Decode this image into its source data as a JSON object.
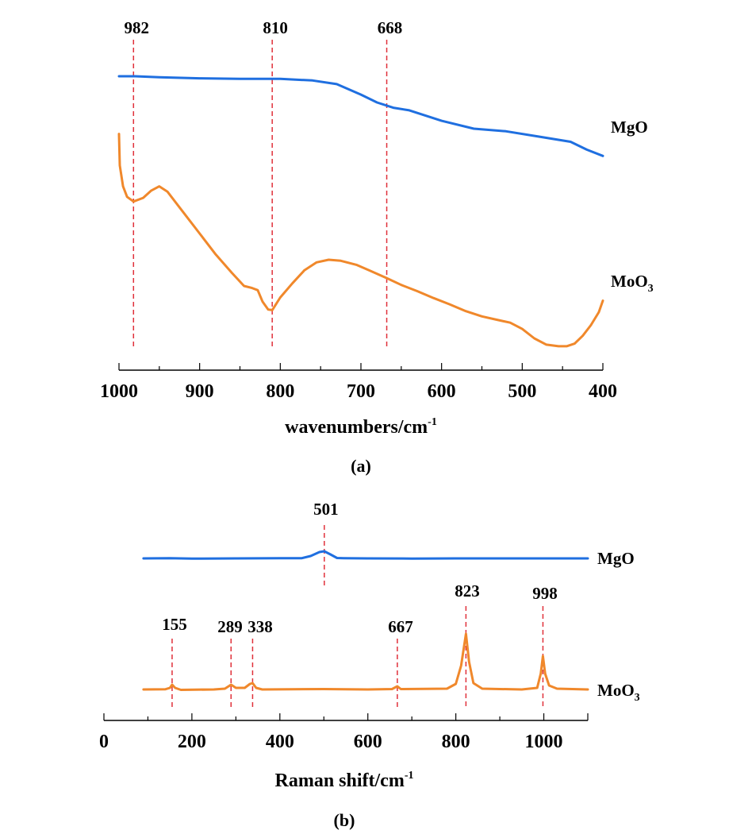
{
  "chart_data": [
    {
      "type": "line",
      "panel_label": "(a)",
      "title": "",
      "xlabel": "wavenumbers/cm",
      "xlabel_sup": "-1",
      "ylabel": "",
      "xlim": [
        1000,
        400
      ],
      "x_reversed": true,
      "x_ticks": [
        1000,
        900,
        800,
        700,
        600,
        500,
        400
      ],
      "x_tick_labels": [
        "1000",
        "900",
        "800",
        "700",
        "600",
        "500",
        "400"
      ],
      "x_minor_step": 50,
      "grid": false,
      "y_axis_shown": false,
      "markers": [
        {
          "x": 982,
          "label": "982"
        },
        {
          "x": 810,
          "label": "810"
        },
        {
          "x": 668,
          "label": "668"
        }
      ],
      "series": [
        {
          "name": "MgO",
          "label": "MgO",
          "color": "#1f6fe0",
          "points": [
            [
              1000,
              0.97
            ],
            [
              980,
              0.97
            ],
            [
              950,
              0.968
            ],
            [
              900,
              0.966
            ],
            [
              850,
              0.965
            ],
            [
              800,
              0.965
            ],
            [
              760,
              0.962
            ],
            [
              730,
              0.955
            ],
            [
              700,
              0.935
            ],
            [
              680,
              0.92
            ],
            [
              660,
              0.91
            ],
            [
              640,
              0.905
            ],
            [
              600,
              0.885
            ],
            [
              560,
              0.87
            ],
            [
              520,
              0.865
            ],
            [
              480,
              0.855
            ],
            [
              440,
              0.845
            ],
            [
              420,
              0.83
            ],
            [
              400,
              0.818
            ]
          ]
        },
        {
          "name": "MoO3",
          "label": "MoO",
          "label_sub": "3",
          "color": "#f0882b",
          "points": [
            [
              1000,
              0.86
            ],
            [
              999,
              0.8
            ],
            [
              995,
              0.76
            ],
            [
              990,
              0.74
            ],
            [
              982,
              0.731
            ],
            [
              970,
              0.738
            ],
            [
              960,
              0.752
            ],
            [
              950,
              0.76
            ],
            [
              940,
              0.75
            ],
            [
              920,
              0.71
            ],
            [
              900,
              0.67
            ],
            [
              880,
              0.63
            ],
            [
              860,
              0.595
            ],
            [
              845,
              0.57
            ],
            [
              835,
              0.566
            ],
            [
              828,
              0.562
            ],
            [
              822,
              0.54
            ],
            [
              815,
              0.525
            ],
            [
              810,
              0.524
            ],
            [
              800,
              0.548
            ],
            [
              785,
              0.575
            ],
            [
              770,
              0.6
            ],
            [
              755,
              0.615
            ],
            [
              740,
              0.62
            ],
            [
              725,
              0.618
            ],
            [
              705,
              0.61
            ],
            [
              690,
              0.6
            ],
            [
              668,
              0.585
            ],
            [
              650,
              0.572
            ],
            [
              630,
              0.56
            ],
            [
              610,
              0.547
            ],
            [
              590,
              0.535
            ],
            [
              570,
              0.522
            ],
            [
              550,
              0.512
            ],
            [
              530,
              0.505
            ],
            [
              515,
              0.5
            ],
            [
              500,
              0.488
            ],
            [
              485,
              0.47
            ],
            [
              470,
              0.458
            ],
            [
              455,
              0.455
            ],
            [
              445,
              0.455
            ],
            [
              435,
              0.46
            ],
            [
              425,
              0.475
            ],
            [
              415,
              0.495
            ],
            [
              405,
              0.52
            ],
            [
              400,
              0.542
            ]
          ]
        }
      ]
    },
    {
      "type": "line",
      "panel_label": "(b)",
      "title": "",
      "xlabel": "Raman shift/cm",
      "xlabel_sup": "-1",
      "ylabel": "",
      "xlim": [
        0,
        1100
      ],
      "x_reversed": false,
      "x_ticks": [
        0,
        200,
        400,
        600,
        800,
        1000
      ],
      "x_tick_labels": [
        "0",
        "200",
        "400",
        "600",
        "800",
        "1000"
      ],
      "x_minor_step": 100,
      "grid": false,
      "y_axis_shown": false,
      "markers_mgo": [
        {
          "x": 501,
          "label": "501"
        }
      ],
      "markers_moo3": [
        {
          "x": 155,
          "label": "155"
        },
        {
          "x": 289,
          "label": "289"
        },
        {
          "x": 338,
          "label": "338"
        },
        {
          "x": 667,
          "label": "667"
        },
        {
          "x": 823,
          "label": "823"
        },
        {
          "x": 998,
          "label": "998"
        }
      ],
      "series": [
        {
          "name": "MgO",
          "label": "MgO",
          "color": "#1f6fe0",
          "points": [
            [
              90,
              0
            ],
            [
              150,
              0.003
            ],
            [
              200,
              -0.003
            ],
            [
              300,
              0
            ],
            [
              400,
              0.002
            ],
            [
              450,
              0.003
            ],
            [
              470,
              0.03
            ],
            [
              490,
              0.08
            ],
            [
              501,
              0.09
            ],
            [
              515,
              0.05
            ],
            [
              530,
              0.005
            ],
            [
              545,
              0.003
            ],
            [
              600,
              0
            ],
            [
              700,
              -0.002
            ],
            [
              800,
              0
            ],
            [
              900,
              0
            ],
            [
              1000,
              0
            ],
            [
              1100,
              0
            ]
          ]
        },
        {
          "name": "MoO3",
          "label": "MoO",
          "label_sub": "3",
          "color": "#f0882b",
          "points": [
            [
              90,
              0
            ],
            [
              140,
              0.003
            ],
            [
              150,
              0.02
            ],
            [
              155,
              0.06
            ],
            [
              162,
              0.02
            ],
            [
              175,
              -0.005
            ],
            [
              250,
              0
            ],
            [
              275,
              0.01
            ],
            [
              289,
              0.06
            ],
            [
              300,
              0.02
            ],
            [
              320,
              0.02
            ],
            [
              332,
              0.07
            ],
            [
              338,
              0.08
            ],
            [
              346,
              0.02
            ],
            [
              360,
              0
            ],
            [
              500,
              0.005
            ],
            [
              600,
              0
            ],
            [
              655,
              0.005
            ],
            [
              667,
              0.04
            ],
            [
              675,
              0.005
            ],
            [
              780,
              0.01
            ],
            [
              800,
              0.07
            ],
            [
              812,
              0.3
            ],
            [
              823,
              0.7
            ],
            [
              830,
              0.35
            ],
            [
              840,
              0.08
            ],
            [
              860,
              0.01
            ],
            [
              950,
              0
            ],
            [
              985,
              0.02
            ],
            [
              993,
              0.2
            ],
            [
              998,
              0.42
            ],
            [
              1003,
              0.2
            ],
            [
              1012,
              0.05
            ],
            [
              1030,
              0.01
            ],
            [
              1100,
              0
            ]
          ]
        }
      ]
    }
  ]
}
